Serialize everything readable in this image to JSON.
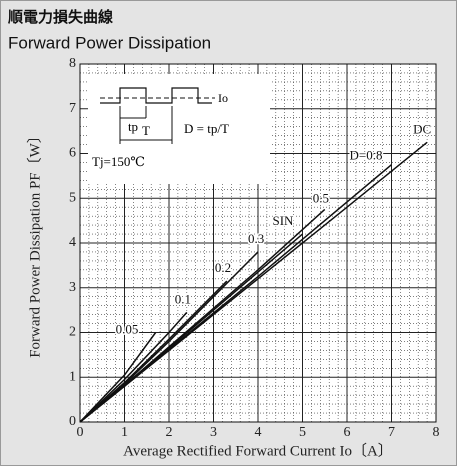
{
  "chart_data": {
    "type": "line",
    "title": "順電力損失曲線",
    "subtitle": "Forward Power Dissipation",
    "x_label": "Average Rectified Forward Current  Io〔A〕",
    "y_label": "Forward Power Dissipation  PF〔W〕",
    "xlim": [
      0,
      8
    ],
    "ylim": [
      0,
      8
    ],
    "xticks": [
      0,
      1,
      2,
      3,
      4,
      5,
      6,
      7,
      8
    ],
    "yticks": [
      0,
      1,
      2,
      3,
      4,
      5,
      6,
      7,
      8
    ],
    "grid": true,
    "color": "#111111",
    "annotations": {
      "io": "Io",
      "tp": "tp",
      "period": "T",
      "duty": "D = tp/T",
      "tj": "Tj=150℃"
    },
    "series": [
      {
        "name": "DC",
        "x": [
          0,
          1,
          2,
          4,
          6,
          7.8
        ],
        "values": [
          0,
          0.8,
          1.6,
          3.2,
          4.8,
          6.25
        ]
      },
      {
        "name": "D=0.8",
        "x": [
          0,
          1,
          2,
          4,
          7
        ],
        "values": [
          0,
          0.8,
          1.62,
          3.25,
          5.75
        ]
      },
      {
        "name": "0.5",
        "x": [
          0,
          1,
          2,
          4,
          5.5
        ],
        "values": [
          0,
          0.82,
          1.68,
          3.4,
          4.75
        ]
      },
      {
        "name": "SIN",
        "x": [
          0,
          1,
          2,
          4,
          5
        ],
        "values": [
          0,
          0.82,
          1.65,
          3.35,
          4.2
        ]
      },
      {
        "name": "0.3",
        "x": [
          0,
          1,
          2,
          4
        ],
        "values": [
          0,
          0.85,
          1.8,
          3.8
        ]
      },
      {
        "name": "0.2",
        "x": [
          0,
          1,
          2,
          3.3
        ],
        "values": [
          0,
          0.88,
          1.85,
          3.15
        ]
      },
      {
        "name": "0.1",
        "x": [
          0,
          1,
          2,
          2.4
        ],
        "values": [
          0,
          0.95,
          2.0,
          2.45
        ]
      },
      {
        "name": "0.05",
        "x": [
          0,
          1,
          1.7
        ],
        "values": [
          0,
          1.05,
          2.0
        ]
      }
    ]
  }
}
